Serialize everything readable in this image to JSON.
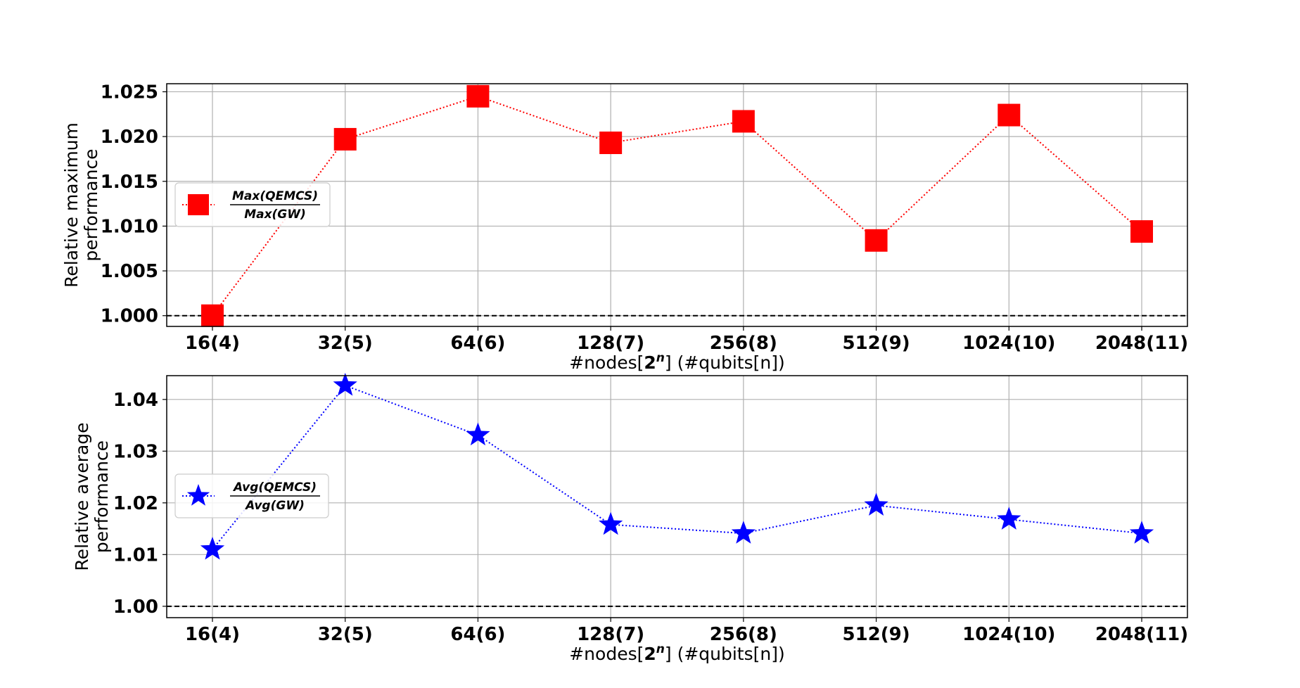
{
  "chart_data": [
    {
      "type": "line",
      "categories": [
        "16(4)",
        "32(5)",
        "64(6)",
        "128(7)",
        "256(8)",
        "512(9)",
        "1024(10)",
        "2048(11)"
      ],
      "series": [
        {
          "name_numerator": "Max(QEMCS)",
          "name_denominator": "Max(GW)",
          "values": [
            1.0,
            1.0197,
            1.0245,
            1.0193,
            1.0217,
            1.0084,
            1.0224,
            1.0094
          ],
          "color": "#ff0000",
          "marker": "square",
          "line_style": "dotted"
        }
      ],
      "xlabel_parts": [
        "#nodes[",
        "2",
        "n",
        "] (#qubits[n])"
      ],
      "ylabel_lines": [
        "Relative maximum",
        "performance"
      ],
      "yticks": [
        "1.000",
        "1.005",
        "1.010",
        "1.015",
        "1.020",
        "1.025"
      ],
      "ylim": [
        0.9988,
        1.0259
      ],
      "reference_line": {
        "y": 1.0,
        "style": "dashed",
        "color": "#000000"
      },
      "grid": true,
      "legend_position": "center-left"
    },
    {
      "type": "line",
      "categories": [
        "16(4)",
        "32(5)",
        "64(6)",
        "128(7)",
        "256(8)",
        "512(9)",
        "1024(10)",
        "2048(11)"
      ],
      "series": [
        {
          "name_numerator": "Avg(QEMCS)",
          "name_denominator": "Avg(GW)",
          "values": [
            1.011,
            1.0427,
            1.0331,
            1.0158,
            1.0141,
            1.0195,
            1.0168,
            1.0141
          ],
          "color": "#0000ff",
          "marker": "star",
          "line_style": "dotted"
        }
      ],
      "xlabel_parts": [
        "#nodes[",
        "2",
        "n",
        "] (#qubits[n])"
      ],
      "ylabel_lines": [
        "Relative average",
        "performance"
      ],
      "yticks": [
        "1.00",
        "1.01",
        "1.02",
        "1.03",
        "1.04"
      ],
      "ylim": [
        0.9978,
        1.0446
      ],
      "reference_line": {
        "y": 1.0,
        "style": "dashed",
        "color": "#000000"
      },
      "grid": true,
      "legend_position": "center-left"
    }
  ]
}
